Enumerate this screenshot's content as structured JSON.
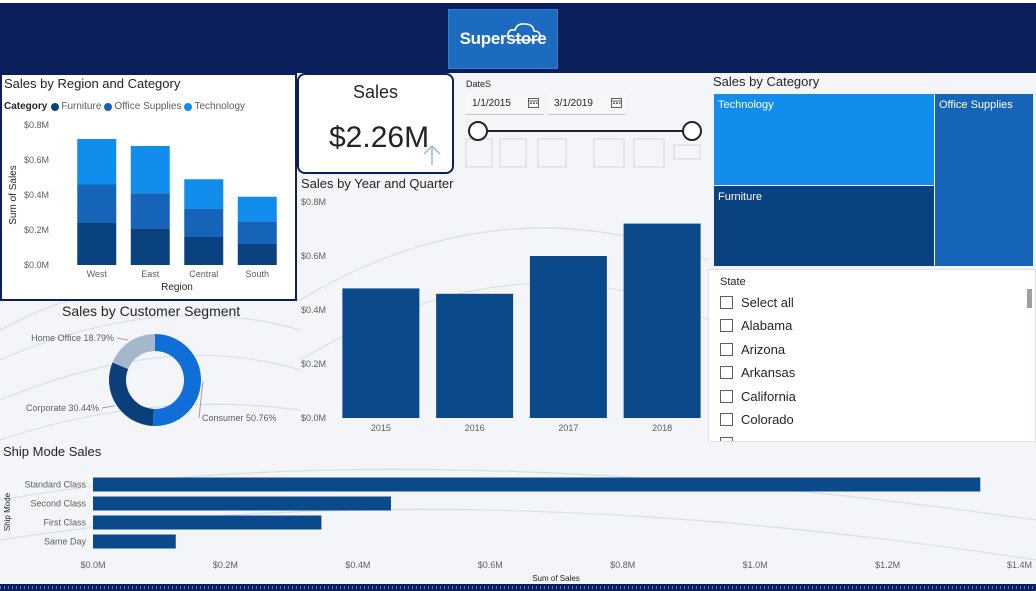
{
  "colors": {
    "header_bg": "#0a1f5c",
    "furniture": "#0a4280",
    "office_supplies": "#1564b8",
    "technology": "#118ded",
    "bar_dark": "#0a4a8a",
    "consumer": "#0f6fd6",
    "corporate": "#0a3f7a",
    "home_office": "#a4b8cd"
  },
  "header": {
    "logo_text": "Superstore",
    "logo_icon": "cloud-icon"
  },
  "region_chart": {
    "title": "Sales by Region and Category",
    "legend_label": "Category",
    "legend": [
      "Furniture",
      "Office Supplies",
      "Technology"
    ],
    "x_label": "Region",
    "y_label": "Sum of Sales"
  },
  "sales_card": {
    "title": "Sales",
    "value": "$2.26M",
    "icon": "arrow-up-icon"
  },
  "date_slicer": {
    "label": "DateS",
    "start": "1/1/2015",
    "end": "3/1/2019",
    "icon": "calendar-icon"
  },
  "category_treemap": {
    "title": "Sales by Category",
    "cells": [
      "Technology",
      "Office Supplies",
      "Furniture"
    ]
  },
  "state_slicer": {
    "title": "State",
    "items": [
      "Select all",
      "Alabama",
      "Arizona",
      "Arkansas",
      "California",
      "Colorado"
    ]
  },
  "year_chart": {
    "title": "Sales by Year and Quarter"
  },
  "segment_chart": {
    "title": "Sales by Customer Segment"
  },
  "ship_chart": {
    "title": "Ship Mode Sales",
    "x_label": "Sum of Sales",
    "y_label": "Ship Mode"
  },
  "chart_data": [
    {
      "id": "region",
      "type": "bar",
      "stacked": true,
      "categories": [
        "West",
        "East",
        "Central",
        "South"
      ],
      "series": [
        {
          "name": "Furniture",
          "values": [
            0.24,
            0.21,
            0.16,
            0.12
          ]
        },
        {
          "name": "Office Supplies",
          "values": [
            0.22,
            0.2,
            0.16,
            0.13
          ]
        },
        {
          "name": "Technology",
          "values": [
            0.26,
            0.27,
            0.17,
            0.14
          ]
        }
      ],
      "title": "Sales by Region and Category",
      "xlabel": "Region",
      "ylabel": "Sum of Sales",
      "ylim": [
        0,
        0.8
      ],
      "y_ticks": [
        0,
        0.2,
        0.4,
        0.6,
        0.8
      ],
      "y_tick_labels": [
        "$0.0M",
        "$0.2M",
        "$0.4M",
        "$0.6M",
        "$0.8M"
      ]
    },
    {
      "id": "year",
      "type": "bar",
      "categories": [
        "2015",
        "2016",
        "2017",
        "2018"
      ],
      "values": [
        0.48,
        0.46,
        0.6,
        0.72
      ],
      "title": "Sales by Year and Quarter",
      "ylim": [
        0,
        0.8
      ],
      "y_ticks": [
        0,
        0.2,
        0.4,
        0.6,
        0.8
      ],
      "y_tick_labels": [
        "$0.0M",
        "$0.2M",
        "$0.4M",
        "$0.6M",
        "$0.8M"
      ]
    },
    {
      "id": "segment",
      "type": "pie",
      "donut": true,
      "categories": [
        "Consumer",
        "Corporate",
        "Home Office"
      ],
      "values": [
        50.76,
        30.44,
        18.79
      ],
      "labels": [
        "Consumer 50.76%",
        "Corporate 30.44%",
        "Home Office 18.79%"
      ],
      "title": "Sales by Customer Segment"
    },
    {
      "id": "ship",
      "type": "bar",
      "orientation": "horizontal",
      "categories": [
        "Standard Class",
        "Second Class",
        "First Class",
        "Same Day"
      ],
      "values": [
        1.34,
        0.45,
        0.345,
        0.125
      ],
      "title": "Ship Mode Sales",
      "xlabel": "Sum of Sales",
      "ylabel": "Ship Mode",
      "xlim": [
        0,
        1.4
      ],
      "x_ticks": [
        0,
        0.2,
        0.4,
        0.6,
        0.8,
        1.0,
        1.2,
        1.4
      ],
      "x_tick_labels": [
        "$0.0M",
        "$0.2M",
        "$0.4M",
        "$0.6M",
        "$0.8M",
        "$1.0M",
        "$1.2M",
        "$1.4M"
      ]
    }
  ]
}
